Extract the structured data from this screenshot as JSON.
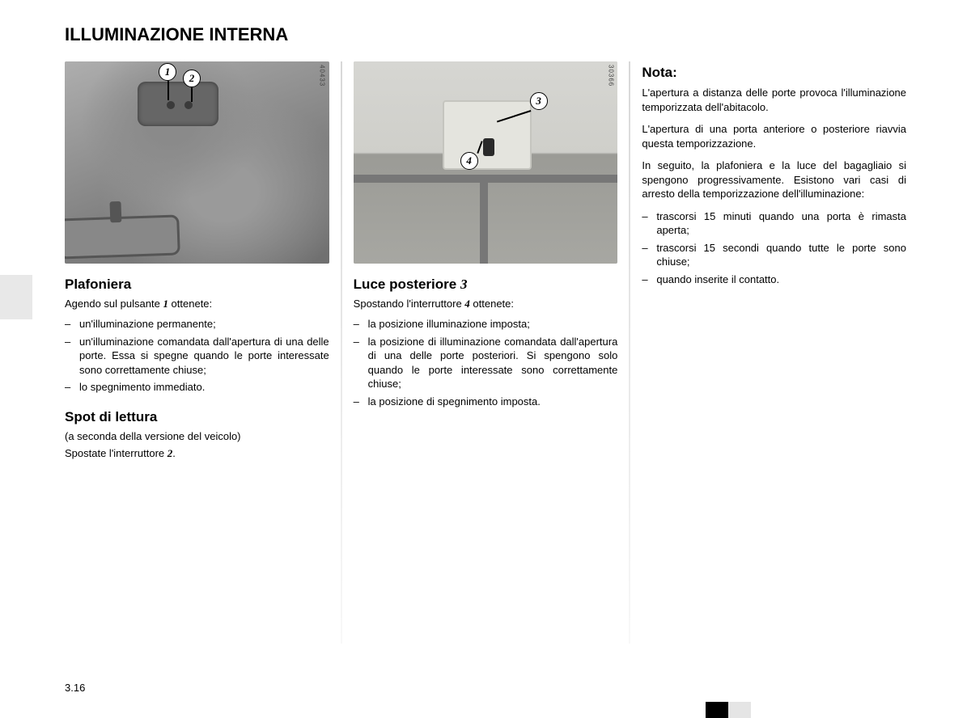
{
  "page_title": "ILLUMINAZIONE INTERNA",
  "page_number": "3.16",
  "photo1": {
    "code": "40433",
    "callouts": {
      "c1": "1",
      "c2": "2"
    }
  },
  "photo2": {
    "code": "30366",
    "callouts": {
      "c3": "3",
      "c4": "4"
    }
  },
  "col1": {
    "heading1": "Plafoniera",
    "intro1_pre": "Agendo sul pulsante ",
    "intro1_num": "1",
    "intro1_post": " ottenete:",
    "bullets1": {
      "b1": "un'illuminazione permanente;",
      "b2": "un'illuminazione comandata dall'apertura di una delle porte. Essa si spegne quando le porte interessate sono correttamente chiuse;",
      "b3": "lo spegnimento immediato."
    },
    "heading2": "Spot di lettura",
    "note2": "(a seconda della versione del veicolo)",
    "intro2_pre": "Spostate l'interruttore ",
    "intro2_num": "2",
    "intro2_post": "."
  },
  "col2": {
    "heading_pre": "Luce posteriore ",
    "heading_num": "3",
    "intro_pre": "Spostando l'interruttore ",
    "intro_num": "4",
    "intro_post": " ottenete:",
    "bullets": {
      "b1": "la posizione illuminazione imposta;",
      "b2": "la posizione di illuminazione comandata dall'apertura di una delle porte posteriori. Si spengono solo quando le porte interessate sono correttamente chiuse;",
      "b3": "la posizione di spegnimento imposta."
    }
  },
  "col3": {
    "heading": "Nota:",
    "p1": "L'apertura a distanza delle porte provoca l'illuminazione temporizzata dell'abitacolo.",
    "p2": "L'apertura di una porta anteriore o posteriore riavvia questa temporizzazione.",
    "p3": "In seguito, la plafoniera e la luce del bagagliaio si spengono progressivamente. Esistono vari casi di arresto della temporizzazione dell'illuminazione:",
    "bullets": {
      "b1": "trascorsi 15 minuti quando una porta è rimasta aperta;",
      "b2": "trascorsi 15 secondi quando tutte le porte sono chiuse;",
      "b3": "quando inserite il contatto."
    }
  }
}
